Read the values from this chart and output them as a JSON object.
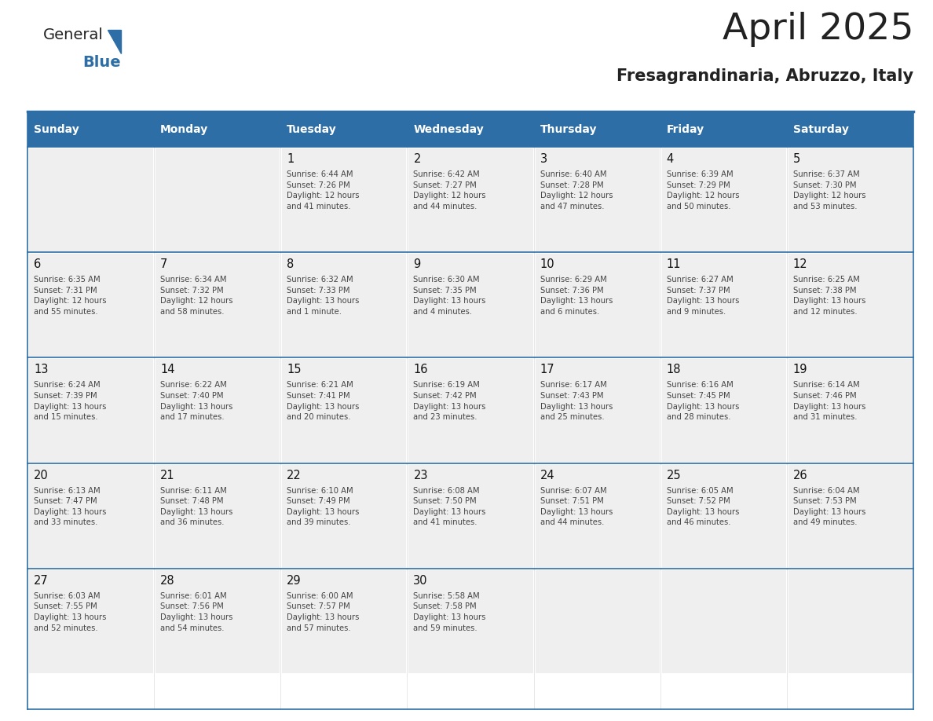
{
  "title": "April 2025",
  "subtitle": "Fresagrandinaria, Abruzzo, Italy",
  "header_bg_color": "#2E6EA6",
  "header_text_color": "#FFFFFF",
  "cell_bg_color": "#EFEFEF",
  "border_color": "#2E6EA6",
  "title_color": "#222222",
  "day_number_color": "#111111",
  "cell_text_color": "#444444",
  "days_of_week": [
    "Sunday",
    "Monday",
    "Tuesday",
    "Wednesday",
    "Thursday",
    "Friday",
    "Saturday"
  ],
  "weeks": [
    [
      {
        "day": 0,
        "info": ""
      },
      {
        "day": 0,
        "info": ""
      },
      {
        "day": 1,
        "info": "Sunrise: 6:44 AM\nSunset: 7:26 PM\nDaylight: 12 hours\nand 41 minutes."
      },
      {
        "day": 2,
        "info": "Sunrise: 6:42 AM\nSunset: 7:27 PM\nDaylight: 12 hours\nand 44 minutes."
      },
      {
        "day": 3,
        "info": "Sunrise: 6:40 AM\nSunset: 7:28 PM\nDaylight: 12 hours\nand 47 minutes."
      },
      {
        "day": 4,
        "info": "Sunrise: 6:39 AM\nSunset: 7:29 PM\nDaylight: 12 hours\nand 50 minutes."
      },
      {
        "day": 5,
        "info": "Sunrise: 6:37 AM\nSunset: 7:30 PM\nDaylight: 12 hours\nand 53 minutes."
      }
    ],
    [
      {
        "day": 6,
        "info": "Sunrise: 6:35 AM\nSunset: 7:31 PM\nDaylight: 12 hours\nand 55 minutes."
      },
      {
        "day": 7,
        "info": "Sunrise: 6:34 AM\nSunset: 7:32 PM\nDaylight: 12 hours\nand 58 minutes."
      },
      {
        "day": 8,
        "info": "Sunrise: 6:32 AM\nSunset: 7:33 PM\nDaylight: 13 hours\nand 1 minute."
      },
      {
        "day": 9,
        "info": "Sunrise: 6:30 AM\nSunset: 7:35 PM\nDaylight: 13 hours\nand 4 minutes."
      },
      {
        "day": 10,
        "info": "Sunrise: 6:29 AM\nSunset: 7:36 PM\nDaylight: 13 hours\nand 6 minutes."
      },
      {
        "day": 11,
        "info": "Sunrise: 6:27 AM\nSunset: 7:37 PM\nDaylight: 13 hours\nand 9 minutes."
      },
      {
        "day": 12,
        "info": "Sunrise: 6:25 AM\nSunset: 7:38 PM\nDaylight: 13 hours\nand 12 minutes."
      }
    ],
    [
      {
        "day": 13,
        "info": "Sunrise: 6:24 AM\nSunset: 7:39 PM\nDaylight: 13 hours\nand 15 minutes."
      },
      {
        "day": 14,
        "info": "Sunrise: 6:22 AM\nSunset: 7:40 PM\nDaylight: 13 hours\nand 17 minutes."
      },
      {
        "day": 15,
        "info": "Sunrise: 6:21 AM\nSunset: 7:41 PM\nDaylight: 13 hours\nand 20 minutes."
      },
      {
        "day": 16,
        "info": "Sunrise: 6:19 AM\nSunset: 7:42 PM\nDaylight: 13 hours\nand 23 minutes."
      },
      {
        "day": 17,
        "info": "Sunrise: 6:17 AM\nSunset: 7:43 PM\nDaylight: 13 hours\nand 25 minutes."
      },
      {
        "day": 18,
        "info": "Sunrise: 6:16 AM\nSunset: 7:45 PM\nDaylight: 13 hours\nand 28 minutes."
      },
      {
        "day": 19,
        "info": "Sunrise: 6:14 AM\nSunset: 7:46 PM\nDaylight: 13 hours\nand 31 minutes."
      }
    ],
    [
      {
        "day": 20,
        "info": "Sunrise: 6:13 AM\nSunset: 7:47 PM\nDaylight: 13 hours\nand 33 minutes."
      },
      {
        "day": 21,
        "info": "Sunrise: 6:11 AM\nSunset: 7:48 PM\nDaylight: 13 hours\nand 36 minutes."
      },
      {
        "day": 22,
        "info": "Sunrise: 6:10 AM\nSunset: 7:49 PM\nDaylight: 13 hours\nand 39 minutes."
      },
      {
        "day": 23,
        "info": "Sunrise: 6:08 AM\nSunset: 7:50 PM\nDaylight: 13 hours\nand 41 minutes."
      },
      {
        "day": 24,
        "info": "Sunrise: 6:07 AM\nSunset: 7:51 PM\nDaylight: 13 hours\nand 44 minutes."
      },
      {
        "day": 25,
        "info": "Sunrise: 6:05 AM\nSunset: 7:52 PM\nDaylight: 13 hours\nand 46 minutes."
      },
      {
        "day": 26,
        "info": "Sunrise: 6:04 AM\nSunset: 7:53 PM\nDaylight: 13 hours\nand 49 minutes."
      }
    ],
    [
      {
        "day": 27,
        "info": "Sunrise: 6:03 AM\nSunset: 7:55 PM\nDaylight: 13 hours\nand 52 minutes."
      },
      {
        "day": 28,
        "info": "Sunrise: 6:01 AM\nSunset: 7:56 PM\nDaylight: 13 hours\nand 54 minutes."
      },
      {
        "day": 29,
        "info": "Sunrise: 6:00 AM\nSunset: 7:57 PM\nDaylight: 13 hours\nand 57 minutes."
      },
      {
        "day": 30,
        "info": "Sunrise: 5:58 AM\nSunset: 7:58 PM\nDaylight: 13 hours\nand 59 minutes."
      },
      {
        "day": 0,
        "info": ""
      },
      {
        "day": 0,
        "info": ""
      },
      {
        "day": 0,
        "info": ""
      }
    ]
  ],
  "logo_text1": "General",
  "logo_text2": "Blue",
  "logo_color1": "#222222",
  "logo_color2": "#2E6EA6",
  "figsize": [
    11.88,
    9.18
  ],
  "dpi": 100
}
